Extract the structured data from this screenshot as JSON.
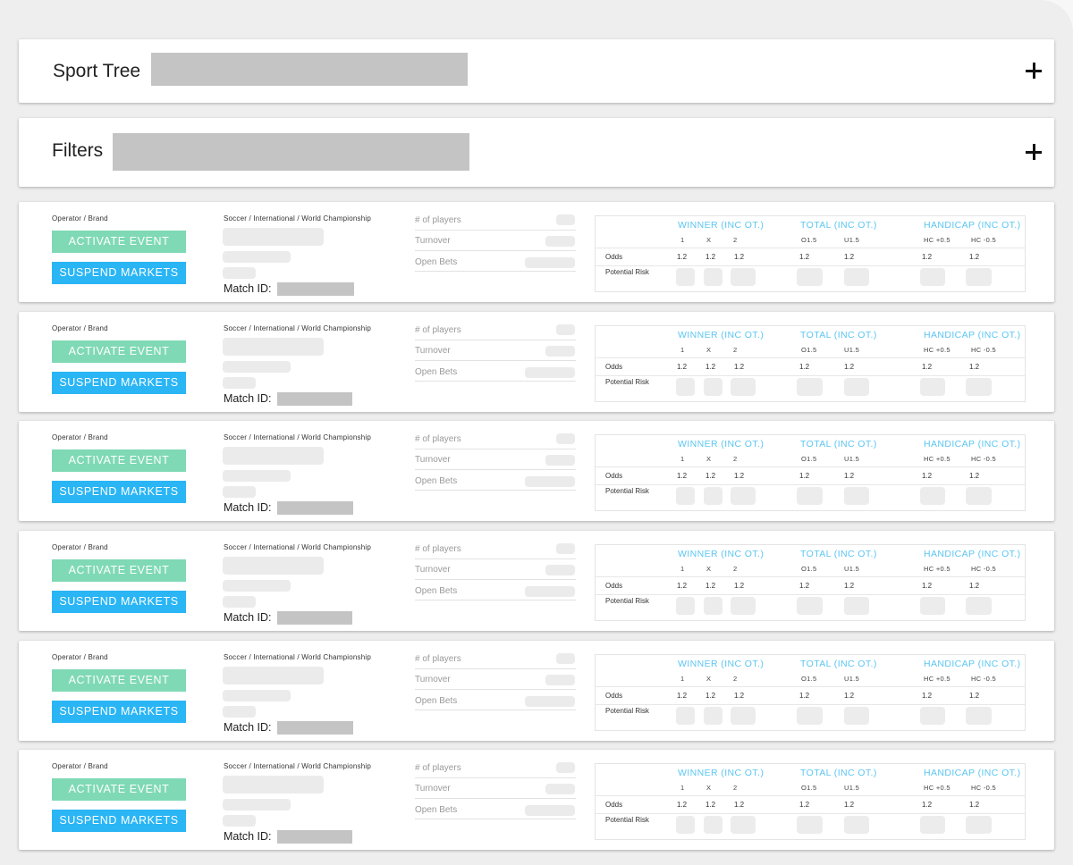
{
  "sport_tree": {
    "title": "Sport Tree"
  },
  "filters": {
    "title": "Filters"
  },
  "event_labels": {
    "operator_brand": "Operator / Brand",
    "activate": "ACTIVATE EVENT",
    "suspend": "SUSPEND MARKETS",
    "breadcrumb": "Soccer / International / World Championship",
    "match_id": "Match ID:",
    "players": "# of players",
    "turnover": "Turnover",
    "open_bets": "Open Bets",
    "odds": "Odds",
    "potential_risk": "Potential Risk"
  },
  "markets": [
    {
      "title": "WINNER (INC OT.)",
      "outcomes": [
        "1",
        "X",
        "2"
      ],
      "odds": [
        "1.2",
        "1.2",
        "1.2"
      ]
    },
    {
      "title": "TOTAL (INC OT.)",
      "outcomes": [
        "O1.5",
        "U1.5"
      ],
      "odds": [
        "1.2",
        "1.2"
      ]
    },
    {
      "title": "HANDICAP (INC OT.)",
      "outcomes": [
        "HC +0.5",
        "HC -0.5"
      ],
      "odds": [
        "1.2",
        "1.2"
      ]
    }
  ],
  "event_count": 6,
  "colors": {
    "accent_blue": "#2ab5f5",
    "accent_green": "#7fd9b5",
    "market_header": "#5bc6f2"
  }
}
